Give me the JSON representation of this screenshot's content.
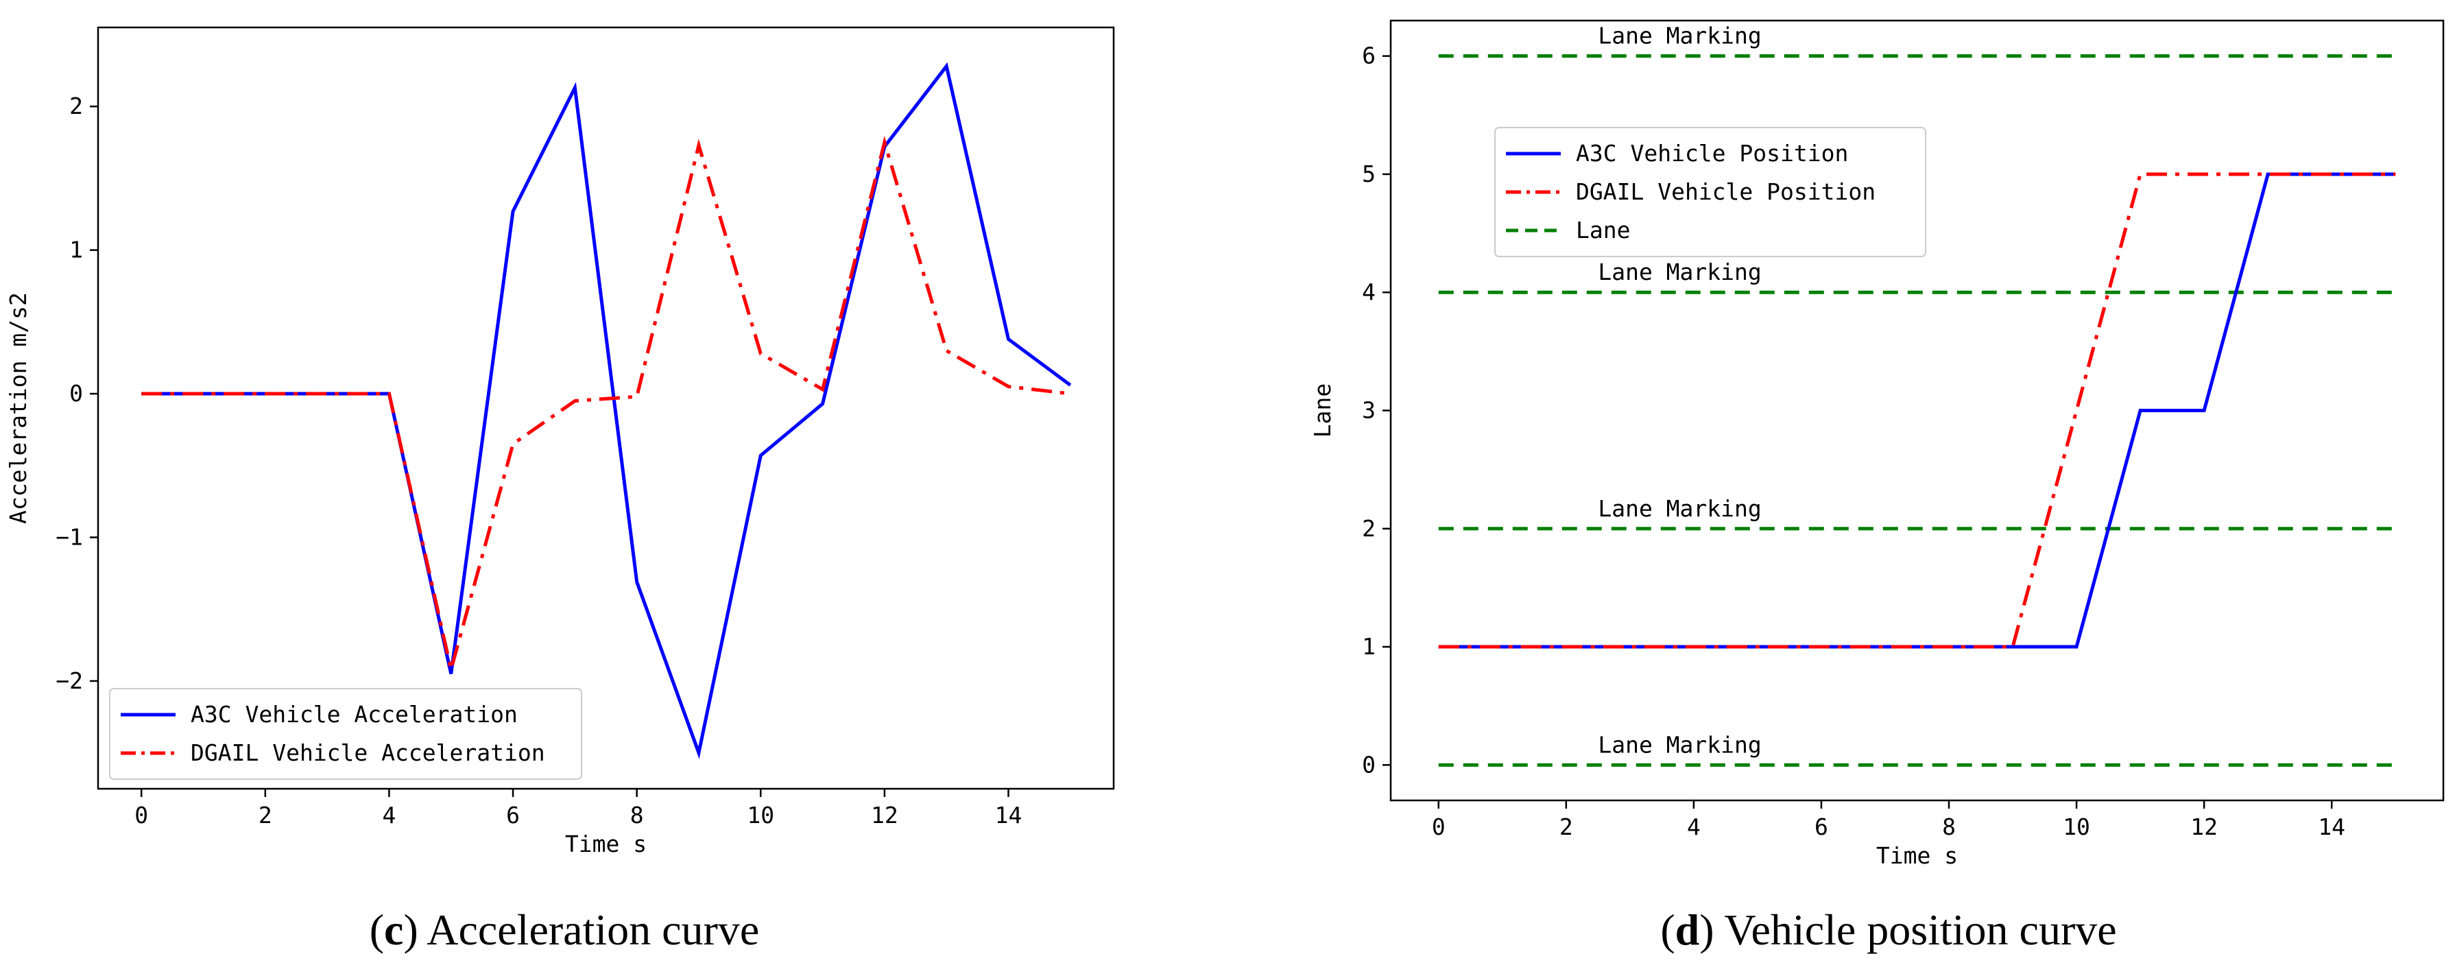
{
  "chart_data": [
    {
      "type": "line",
      "id": "accel",
      "xlabel": "Time s",
      "ylabel": "Acceleration m/s2",
      "xlim": [
        -0.7,
        15.7
      ],
      "ylim": [
        -2.75,
        2.55
      ],
      "xticks": [
        0,
        2,
        4,
        6,
        8,
        10,
        12,
        14
      ],
      "yticks": [
        -2,
        -1,
        0,
        1,
        2
      ],
      "ytick_labels": [
        "−2",
        "−1",
        "0",
        "1",
        "2"
      ],
      "x": [
        0,
        1,
        2,
        3,
        4,
        5,
        6,
        7,
        8,
        9,
        10,
        11,
        12,
        13,
        14,
        15
      ],
      "series": [
        {
          "name": "A3C Vehicle Acceleration",
          "color": "#0000ff",
          "style": "solid",
          "values": [
            0,
            0,
            0,
            0,
            0,
            -1.95,
            1.27,
            2.13,
            -1.31,
            -2.5,
            -0.43,
            -0.07,
            1.72,
            2.28,
            0.38,
            0.06
          ]
        },
        {
          "name": "DGAIL Vehicle Acceleration",
          "color": "#ff0000",
          "style": "dashdot",
          "values": [
            0,
            0,
            0,
            0,
            0,
            -1.92,
            -0.35,
            -0.05,
            -0.02,
            1.73,
            0.28,
            0.03,
            1.75,
            0.3,
            0.05,
            0
          ]
        }
      ],
      "legend": {
        "placement": "lower-left"
      }
    },
    {
      "type": "line",
      "id": "position",
      "xlabel": "Time s",
      "ylabel": "Lane",
      "xlim": [
        -0.75,
        15.75
      ],
      "ylim": [
        -0.3,
        6.3
      ],
      "xticks": [
        0,
        2,
        4,
        6,
        8,
        10,
        12,
        14
      ],
      "yticks": [
        0,
        1,
        2,
        3,
        4,
        5,
        6
      ],
      "x": [
        0,
        1,
        2,
        3,
        4,
        5,
        6,
        7,
        8,
        9,
        10,
        11,
        12,
        13,
        14,
        15
      ],
      "series": [
        {
          "name": "A3C Vehicle Position",
          "color": "#0000ff",
          "style": "solid",
          "values": [
            1,
            1,
            1,
            1,
            1,
            1,
            1,
            1,
            1,
            1,
            1,
            3,
            3,
            5,
            5,
            5
          ]
        },
        {
          "name": "DGAIL Vehicle Position",
          "color": "#ff0000",
          "style": "dashdot",
          "values": [
            1,
            1,
            1,
            1,
            1,
            1,
            1,
            1,
            1,
            1,
            3,
            5,
            5,
            5,
            5,
            5
          ]
        }
      ],
      "lanes": {
        "name": "Lane",
        "color": "#008000",
        "style": "dashed",
        "levels": [
          0,
          2,
          4,
          6
        ],
        "x_range": [
          0,
          15
        ],
        "annotation": "Lane Marking"
      },
      "legend": {
        "placement": "upper-left"
      }
    }
  ],
  "captions": [
    {
      "letter": "c",
      "text": " Acceleration curve"
    },
    {
      "letter": "d",
      "text": " Vehicle position curve"
    }
  ]
}
